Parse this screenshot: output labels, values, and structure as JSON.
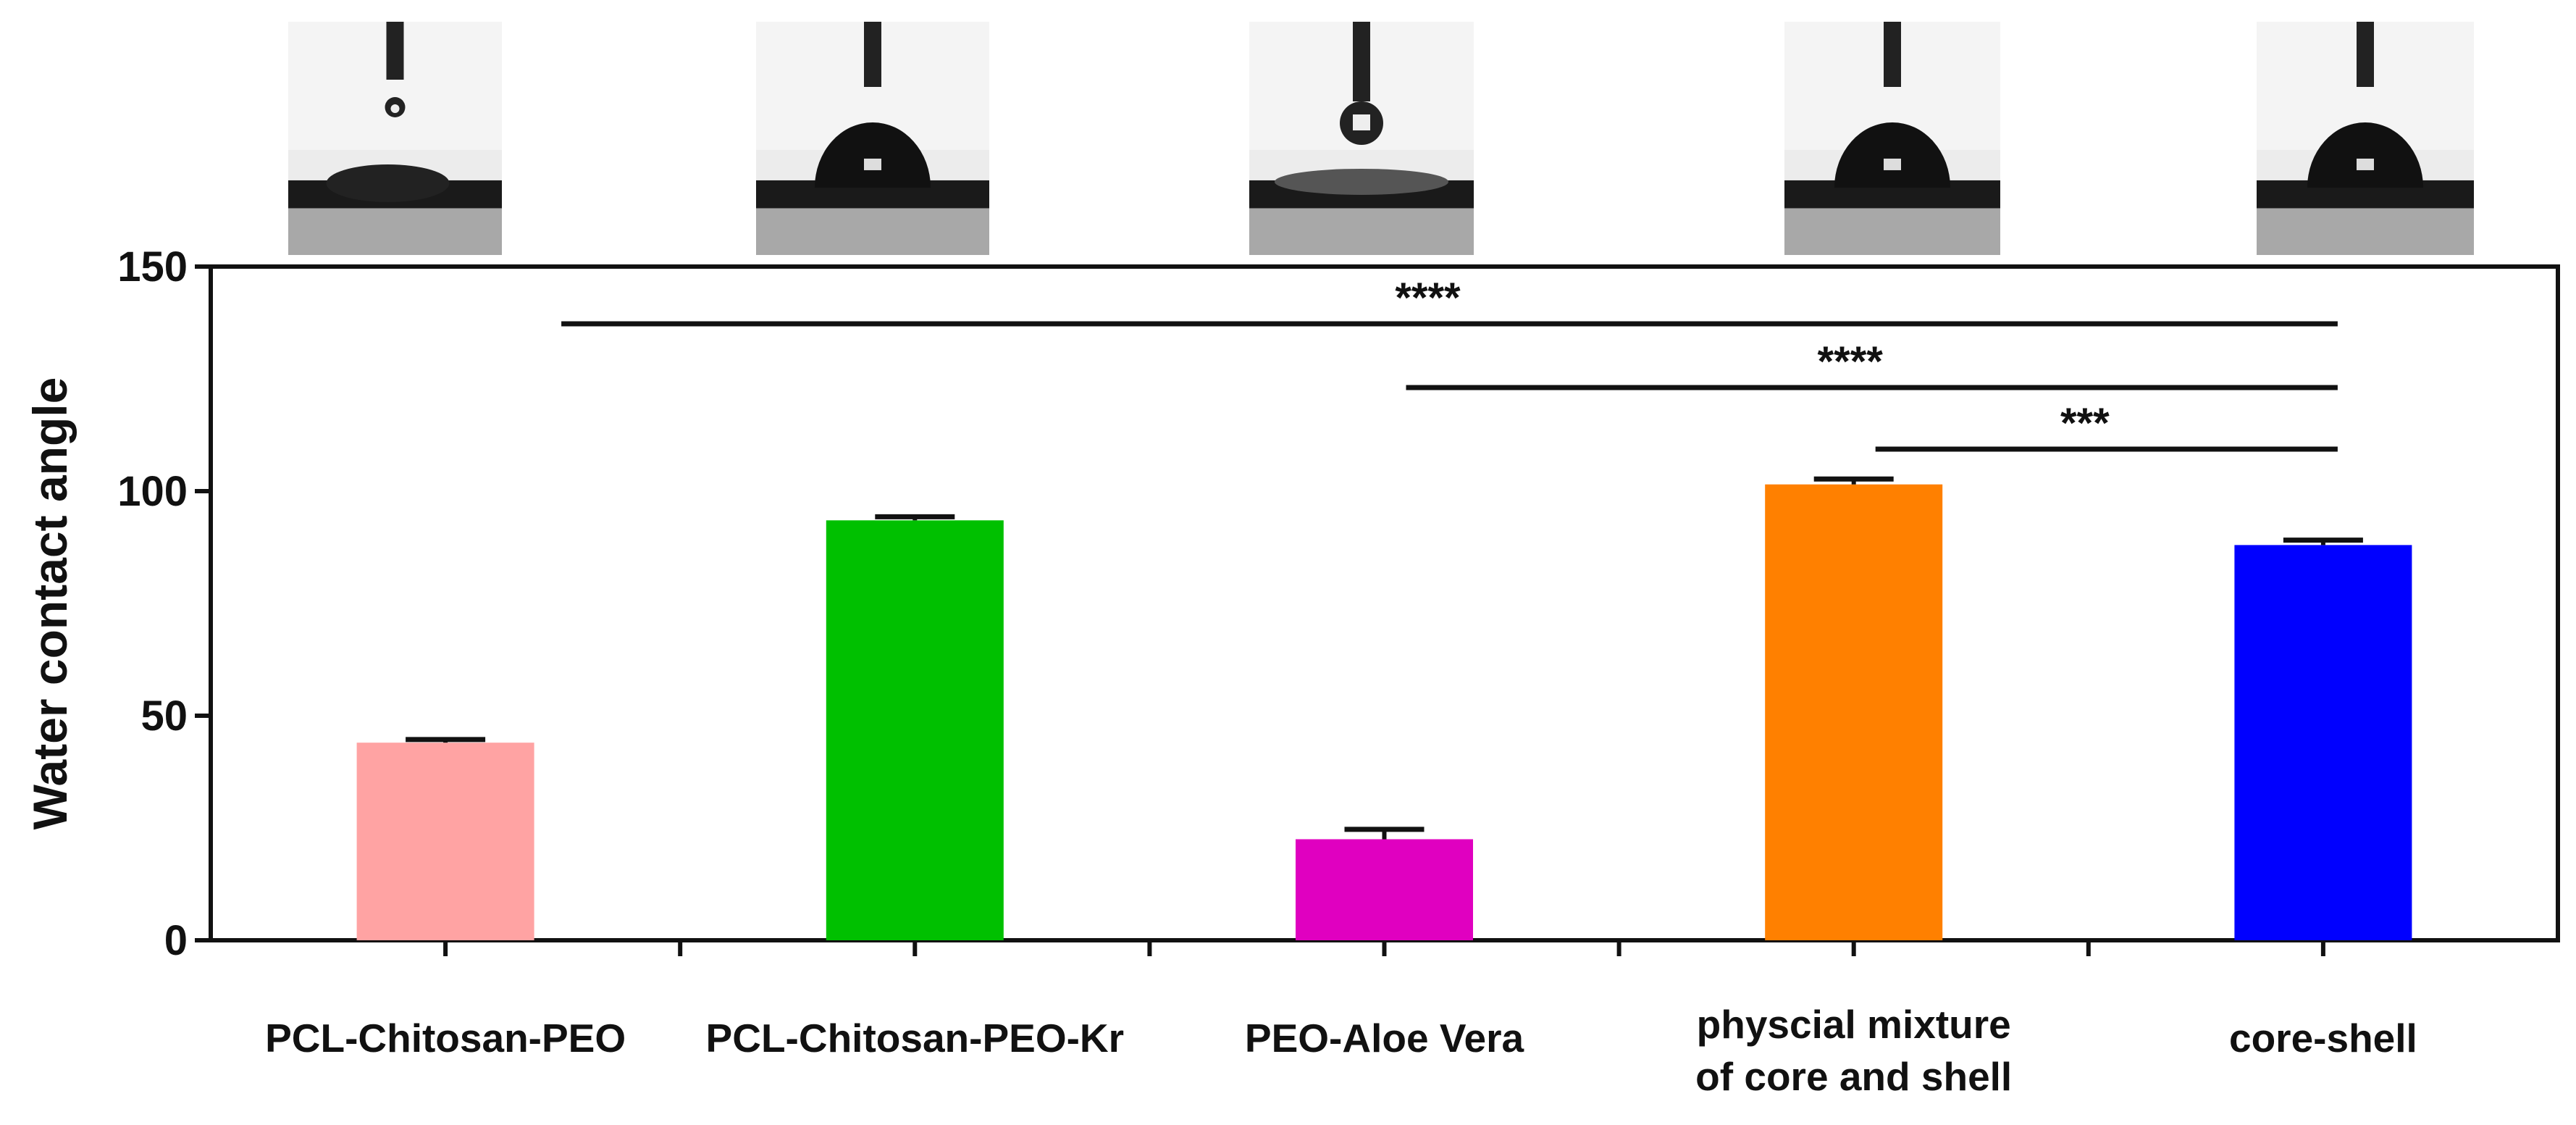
{
  "chart_data": {
    "type": "bar",
    "title": "",
    "xlabel": "",
    "ylabel": "Water contact angle",
    "ylim": [
      0,
      150
    ],
    "yticks": [
      "0",
      "50",
      "100",
      "150"
    ],
    "grid": false,
    "categories": [
      [
        "PCL-Chitosan-PEO"
      ],
      [
        "PCL-Chitosan-PEO-Kr"
      ],
      [
        "PEO-Aloe Vera"
      ],
      [
        "physcial mixture",
        "of core and shell"
      ],
      [
        "core-shell"
      ]
    ],
    "values": [
      44,
      93.5,
      22.5,
      101.5,
      88
    ],
    "errors": [
      0.7,
      0.8,
      2.2,
      1.2,
      1.1
    ],
    "colors": [
      "#ffa3a3",
      "#00c000",
      "#e000c0",
      "#ff8000",
      "#0000ff"
    ],
    "droplet_images": [
      "water droplet on PCL-Chitosan-PEO",
      "water droplet on PCL-Chitosan-PEO-Kr",
      "water droplet on PEO-Aloe Vera",
      "water droplet on physcial mixture of core and shell",
      "water droplet on core-shell"
    ],
    "significance": [
      {
        "from": 0,
        "to": 4,
        "label": "****"
      },
      {
        "from": 2,
        "to": 4,
        "label": "****"
      },
      {
        "from": 3,
        "to": 4,
        "label": "***"
      }
    ]
  }
}
